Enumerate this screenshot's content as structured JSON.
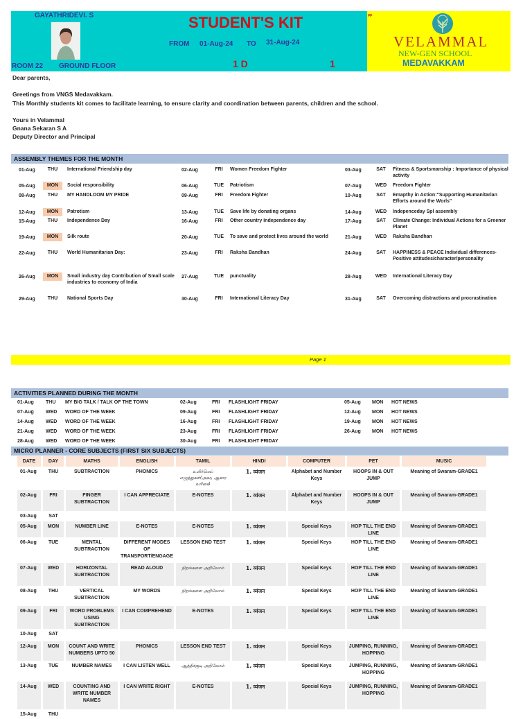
{
  "header": {
    "teacher": "GAYATHRIDEVI. S",
    "title": "STUDENT'S KIT",
    "from_label": "FROM",
    "from_date": "01-Aug-24",
    "to_label": "TO",
    "to_date": "31-Aug-24",
    "room": "ROOM 22",
    "floor": "GROUND FLOOR",
    "class": "1 D",
    "number": "1",
    "corner_mark": "pp",
    "colors": {
      "header_bg": "#00CCCC",
      "logo_bg": "#FFFF00",
      "title": "#C8141E"
    }
  },
  "logo": {
    "line1": "VELAMMAL",
    "line2": "NEW-GEN SCHOOL",
    "line3": "MEDAVAKKAM"
  },
  "letter": {
    "salutation": "Dear parents,",
    "greeting": "Greetings from VNGS Medavakkam.",
    "body": "This Monthly students kit comes to facilitate learning, to ensure clarity and coordination between parents, children and the school.",
    "closing": "Yours in Velammal",
    "name": "Gnana Sekaran S A",
    "designation": "Deputy Director and Principal"
  },
  "assembly": {
    "title": "ASSEMBLY THEMES FOR THE MONTH",
    "rows": [
      [
        {
          "date": "01-Aug",
          "day": "THU",
          "theme": "International Friendship day"
        },
        {
          "date": "02-Aug",
          "day": "FRI",
          "theme": "Women Freedom Fighter"
        },
        {
          "date": "03-Aug",
          "day": "SAT",
          "theme": "Fitness & Sportsmanship : Importance of physical activity"
        }
      ],
      [
        {
          "date": "05-Aug",
          "day": "MON",
          "theme": "Social responsibility"
        },
        {
          "date": "06-Aug",
          "day": "TUE",
          "theme": "Patriotism"
        },
        {
          "date": "07-Aug",
          "day": "WED",
          "theme": "Freedom Fighter"
        }
      ],
      [
        {
          "date": "08-Aug",
          "day": "THU",
          "theme": " MY HANDLOOM MY PRIDE"
        },
        {
          "date": "09-Aug",
          "day": "FRI",
          "theme": "Freedom Fighter"
        },
        {
          "date": "10-Aug",
          "day": "SAT",
          "theme": "Emapthy in Action:\"Supporting Humanitarian Efforts around the Worls\""
        }
      ],
      [
        {
          "date": "12-Aug",
          "day": "MON",
          "theme": "Patrotism"
        },
        {
          "date": "13-Aug",
          "day": "TUE",
          "theme": "Save life by donating organs"
        },
        {
          "date": "14-Aug",
          "day": "WED",
          "theme": "Indepenceday Spl assembly"
        }
      ],
      [
        {
          "date": "15-Aug",
          "day": "THU",
          "theme": " Independence Day"
        },
        {
          "date": "16-Aug",
          "day": "FRI",
          "theme": "Other country Independence day"
        },
        {
          "date": "17-Aug",
          "day": "SAT",
          "theme": "Climate Change: Individual Actions for a Greener Planet"
        }
      ],
      [
        {
          "date": "19-Aug",
          "day": "MON",
          "theme": "Silk route"
        },
        {
          "date": "20-Aug",
          "day": "TUE",
          "theme": "To save and protect lives around the world"
        },
        {
          "date": "21-Aug",
          "day": "WED",
          "theme": "Raksha Bandhan"
        }
      ],
      [
        {
          "date": "22-Aug",
          "day": "THU",
          "theme": " World Humanitarian Day:"
        },
        {
          "date": "23-Aug",
          "day": "FRI",
          "theme": "Raksha Bandhan"
        },
        {
          "date": "24-Aug",
          "day": "SAT",
          "theme": "HAPPINESS & PEACE Individual differences-Positive attitudes/character/personality"
        }
      ],
      [
        {
          "date": "26-Aug",
          "day": "MON",
          "theme": "Small industry day Contribution of Small scale industries  to  economy of India"
        },
        {
          "date": "27-Aug",
          "day": "TUE",
          "theme": "punctuality"
        },
        {
          "date": "28-Aug",
          "day": "WED",
          "theme": "International Literacy Day"
        }
      ],
      [
        {
          "date": "29-Aug",
          "day": "THU",
          "theme": "National Sports Day"
        },
        {
          "date": "30-Aug",
          "day": "FRI",
          "theme": "International Literacy Day"
        },
        {
          "date": "31-Aug",
          "day": "SAT",
          "theme": "Overcoming distractions and procrastination"
        }
      ]
    ]
  },
  "page_footer": "Page 1",
  "activities": {
    "title": "ACTIVITIES PLANNED DURING THE MONTH",
    "rows": [
      [
        {
          "date": "01-Aug",
          "day": "THU",
          "activity": "MY BIG TALK / TALK OF THE TOWN"
        },
        {
          "date": "02-Aug",
          "day": "FRI",
          "activity": "FLASHLIGHT FRIDAY"
        },
        {
          "date": "05-Aug",
          "day": "MON",
          "activity": "HOT NEWS"
        }
      ],
      [
        {
          "date": "07-Aug",
          "day": "WED",
          "activity": "WORD OF THE WEEK"
        },
        {
          "date": "09-Aug",
          "day": "FRI",
          "activity": "FLASHLIGHT FRIDAY"
        },
        {
          "date": "12-Aug",
          "day": "MON",
          "activity": "HOT NEWS"
        }
      ],
      [
        {
          "date": "14-Aug",
          "day": "WED",
          "activity": "WORD OF THE WEEK"
        },
        {
          "date": "16-Aug",
          "day": "FRI",
          "activity": "FLASHLIGHT FRIDAY"
        },
        {
          "date": "19-Aug",
          "day": "MON",
          "activity": "HOT NEWS"
        }
      ],
      [
        {
          "date": "21-Aug",
          "day": "WED",
          "activity": "WORD OF THE WEEK"
        },
        {
          "date": "23-Aug",
          "day": "FRI",
          "activity": "FLASHLIGHT FRIDAY"
        },
        {
          "date": "26-Aug",
          "day": "MON",
          "activity": "HOT NEWS"
        }
      ],
      [
        {
          "date": "28-Aug",
          "day": "WED",
          "activity": "WORD OF THE WEEK"
        },
        {
          "date": "30-Aug",
          "day": "FRI",
          "activity": "FLASHLIGHT FRIDAY"
        }
      ]
    ]
  },
  "planner": {
    "title": "MICRO PLANNER - CORE SUBJECTS (FIRST SIX SUBJECTS)",
    "columns": [
      "DATE",
      "DAY",
      "MATHS",
      "ENGLISH",
      "TAMIL",
      "HINDI",
      "COMPUTER",
      "PET",
      "MUSIC"
    ],
    "rows": [
      [
        "01-Aug",
        "THU",
        "SUBTRACTION",
        "PHONICS",
        "உயிர்மெய் எழுத்துகள்(அகர, ஆகார வரிசை)",
        "1. व्यंजन",
        "Alphabet and Number Keys",
        "HOOPS IN & OUT JUMP",
        "Meaning of Swaram-GRADE1"
      ],
      [
        "02-Aug",
        "FRI",
        "FINGER SUBTRACTION",
        "I CAN APPRECIATE",
        "E-NOTES",
        "1. व्यंजन",
        "Alphabet and Number Keys",
        "HOOPS IN & OUT JUMP",
        "Meaning of Swaram-GRADE1"
      ],
      [
        "03-Aug",
        "SAT",
        "",
        "",
        "",
        "",
        "",
        "",
        ""
      ],
      [
        "05-Aug",
        "MON",
        "NUMBER LINE",
        "E-NOTES",
        "E-NOTES",
        "1. व्यंजन",
        "Special Keys",
        "HOP TILL THE END LINE",
        "Meaning of Swaram-GRADE1"
      ],
      [
        "06-Aug",
        "TUE",
        "MENTAL SUBTRACTION",
        "DIFFERENT MODES OF TRANSPORT/ENGAGE",
        "LESSON END TEST",
        "1. व्यंजन",
        "Special Keys",
        "HOP TILL THE END LINE",
        "Meaning of Swaram-GRADE1"
      ],
      [
        "07-Aug",
        "WED",
        "HORIZONTAL SUBTRACTION",
        "READ ALOUD",
        "நிறங்களை அறிவோம்",
        "1. व्यंजन",
        "Special Keys",
        "HOP TILL THE END LINE",
        "Meaning of Swaram-GRADE1"
      ],
      [
        "08-Aug",
        "THU",
        "VERTICAL SUBTRACTION",
        "MY WORDS",
        "நிறங்களை அறிவோம்",
        "1. व्यंजन",
        "Special Keys",
        "HOP TILL THE END LINE",
        "Meaning of Swaram-GRADE1"
      ],
      [
        "09-Aug",
        "FRI",
        "WORD PROBLEMS USING SUBTRACTION",
        "I CAN COMPREHEND",
        "E-NOTES",
        "1. व्यंजन",
        "Special Keys",
        "HOP TILL THE END LINE",
        "Meaning of Swaram-GRADE1"
      ],
      [
        "10-Aug",
        "SAT",
        "",
        "",
        "",
        "",
        "",
        "",
        ""
      ],
      [
        "12-Aug",
        "MON",
        "COUNT AND WRITE NUMBERS UPTO 50",
        "PHONICS",
        "LESSON END TEST",
        "1. व्यंजन",
        "Special Keys",
        "JUMPING, RUNNING, HOPPING",
        "Meaning of Swaram-GRADE1"
      ],
      [
        "13-Aug",
        "TUE",
        "NUMBER NAMES",
        "I CAN LISTEN WELL",
        "ஆத்திச்சூடி அறிவோம்",
        "1. व्यंजन",
        "Special Keys",
        "JUMPING, RUNNING, HOPPING",
        "Meaning of Swaram-GRADE1"
      ],
      [
        "14-Aug",
        "WED",
        "COUNTING AND WRITE NUMBER NAMES",
        "I CAN WRITE RIGHT",
        "E-NOTES",
        "1. व्यंजन",
        "Special Keys",
        "JUMPING, RUNNING, HOPPING",
        "Meaning of Swaram-GRADE1"
      ],
      [
        "15-Aug",
        "THU",
        "",
        "",
        "",
        "",
        "",
        "",
        ""
      ]
    ]
  }
}
